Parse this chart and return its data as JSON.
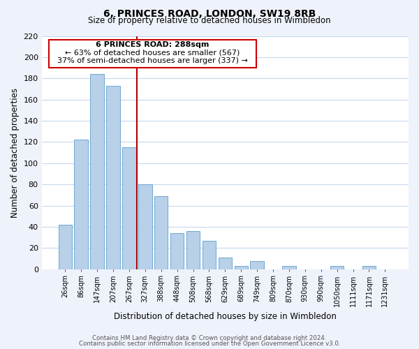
{
  "title": "6, PRINCES ROAD, LONDON, SW19 8RB",
  "subtitle": "Size of property relative to detached houses in Wimbledon",
  "xlabel": "Distribution of detached houses by size in Wimbledon",
  "ylabel": "Number of detached properties",
  "categories": [
    "26sqm",
    "86sqm",
    "147sqm",
    "207sqm",
    "267sqm",
    "327sqm",
    "388sqm",
    "448sqm",
    "508sqm",
    "568sqm",
    "629sqm",
    "689sqm",
    "749sqm",
    "809sqm",
    "870sqm",
    "930sqm",
    "990sqm",
    "1050sqm",
    "1111sqm",
    "1171sqm",
    "1231sqm"
  ],
  "values": [
    42,
    122,
    184,
    173,
    115,
    80,
    69,
    34,
    36,
    27,
    11,
    3,
    8,
    0,
    3,
    0,
    0,
    3,
    0,
    3,
    0
  ],
  "bar_color": "#b8d0e8",
  "bar_edge_color": "#6fa8d0",
  "ref_line_x": 4.5,
  "ref_line_color": "#b00000",
  "annotation_title": "6 PRINCES ROAD: 288sqm",
  "annotation_line1": "← 63% of detached houses are smaller (567)",
  "annotation_line2": "37% of semi-detached houses are larger (337) →",
  "annotation_box_color": "#ffffff",
  "annotation_box_edge": "#cc0000",
  "ylim": [
    0,
    220
  ],
  "yticks": [
    0,
    20,
    40,
    60,
    80,
    100,
    120,
    140,
    160,
    180,
    200,
    220
  ],
  "footnote1": "Contains HM Land Registry data © Crown copyright and database right 2024.",
  "footnote2": "Contains public sector information licensed under the Open Government Licence v3.0.",
  "bg_color": "#eef2fa",
  "plot_bg_color": "#ffffff",
  "grid_color": "#c8d8ee"
}
